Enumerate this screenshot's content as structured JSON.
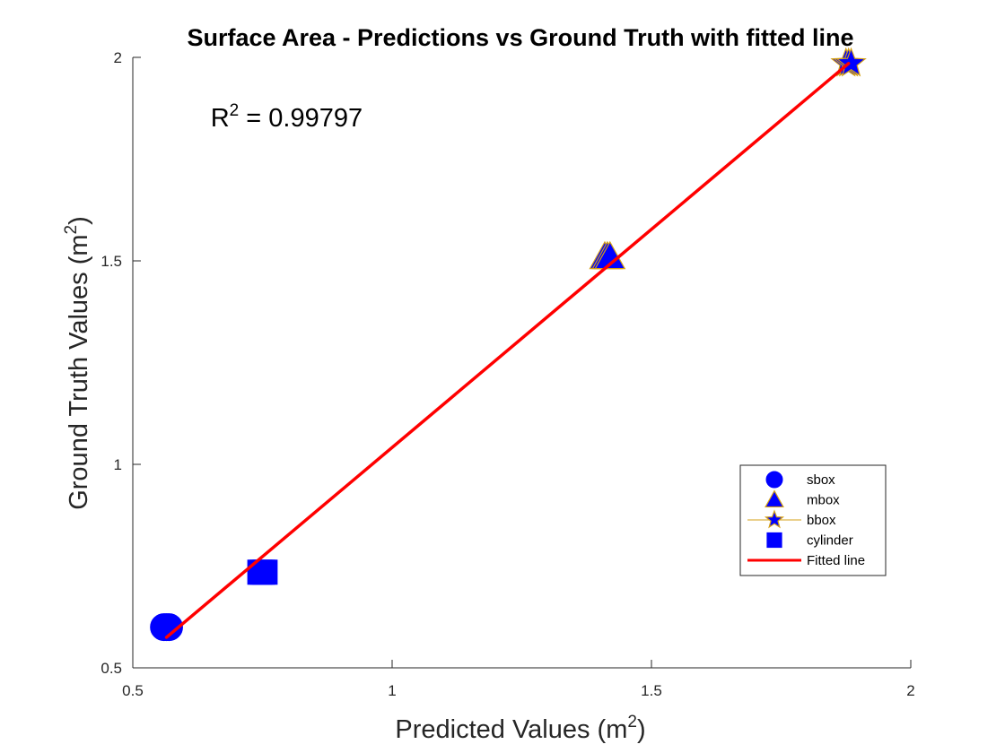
{
  "chart_data": {
    "type": "scatter",
    "title": "Surface Area - Predictions vs Ground Truth with fitted line",
    "xlabel": {
      "main": "Predicted Values (m",
      "sup": "2",
      "end": ")"
    },
    "ylabel": {
      "main": "Ground Truth Values (m",
      "sup": "2",
      "end": ")"
    },
    "xlim": [
      0.5,
      2
    ],
    "ylim": [
      0.5,
      2
    ],
    "xticks": [
      0.5,
      1,
      1.5,
      2
    ],
    "yticks": [
      0.5,
      1,
      1.5,
      2
    ],
    "xtick_labels": [
      "0.5",
      "1",
      "1.5",
      "2"
    ],
    "ytick_labels": [
      "0.5",
      "1",
      "1.5",
      "2"
    ],
    "grid": false,
    "annotation": {
      "prefix": "R",
      "sup": "2",
      "suffix": " = 0.99797",
      "x": 0.65,
      "y": 1.83
    },
    "series": [
      {
        "name": "sbox",
        "marker": "circle",
        "color": "#0000ff",
        "edge": "#0000ff",
        "points": [
          [
            0.56,
            0.6
          ],
          [
            0.565,
            0.6
          ],
          [
            0.57,
            0.6
          ]
        ]
      },
      {
        "name": "mbox",
        "marker": "triangle",
        "color": "#0000ff",
        "edge": "#d4a017",
        "points": [
          [
            1.41,
            1.51
          ],
          [
            1.415,
            1.51
          ],
          [
            1.42,
            1.51
          ]
        ]
      },
      {
        "name": "bbox",
        "marker": "star",
        "color": "#0000ff",
        "edge": "#d4a017",
        "points": [
          [
            1.875,
            1.985
          ],
          [
            1.88,
            1.985
          ],
          [
            1.885,
            1.985
          ]
        ]
      },
      {
        "name": "cylinder",
        "marker": "square",
        "color": "#0000ff",
        "edge": "#0000ff",
        "points": [
          [
            0.745,
            0.735
          ],
          [
            0.75,
            0.735
          ],
          [
            0.755,
            0.735
          ]
        ]
      }
    ],
    "fitted_line": {
      "name": "Fitted line",
      "color": "#ff0000",
      "points": [
        [
          0.565,
          0.575
        ],
        [
          1.88,
          1.985
        ]
      ]
    },
    "legend": {
      "position": "lower-right",
      "entries": [
        "sbox",
        "mbox",
        "bbox",
        "cylinder",
        "Fitted line"
      ]
    }
  }
}
